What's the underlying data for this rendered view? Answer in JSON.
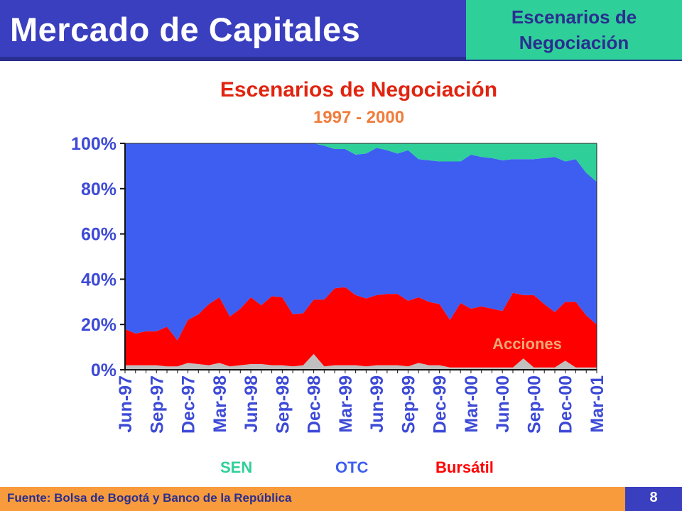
{
  "header": {
    "title": "Mercado de Capitales",
    "badge_line1": "Escenarios de",
    "badge_line2": "Negociación"
  },
  "footer": {
    "source": "Fuente: Bolsa de Bogotá y Banco de la República",
    "page_number": "8"
  },
  "colors": {
    "header": "#3a3fbf",
    "badge": "#2fcf9a",
    "footer": "#f89b3c",
    "title_red": "#e02410",
    "subtitle_orange": "#f07c3c",
    "axis_text": "#3d4ad6",
    "acciones": "#c0c0c0",
    "bursatil": "#ff0000",
    "otc": "#3d5ef0",
    "sen": "#2fcf9a"
  },
  "legend": {
    "sen": "SEN",
    "otc": "OTC",
    "bursatil": "Bursátil"
  },
  "chart_data": {
    "type": "area",
    "stacked": true,
    "percent": true,
    "title": "Escenarios de Negociación",
    "subtitle": "1997 - 2000",
    "ylim": [
      0,
      100
    ],
    "yticks": [
      0,
      20,
      40,
      60,
      80,
      100
    ],
    "ytick_labels": [
      "0%",
      "20%",
      "40%",
      "60%",
      "80%",
      "100%"
    ],
    "tick_labels": [
      "Jun-97",
      "Sep-97",
      "Dec-97",
      "Mar-98",
      "Jun-98",
      "Sep-98",
      "Dec-98",
      "Mar-99",
      "Jun-99",
      "Sep-99",
      "Dec-99",
      "Mar-00",
      "Jun-00",
      "Sep-00",
      "Dec-00",
      "Mar-01"
    ],
    "annotation": "Acciones",
    "x": [
      "Jun-97",
      "Jul-97",
      "Aug-97",
      "Sep-97",
      "Oct-97",
      "Nov-97",
      "Dec-97",
      "Jan-98",
      "Feb-98",
      "Mar-98",
      "Apr-98",
      "May-98",
      "Jun-98",
      "Jul-98",
      "Aug-98",
      "Sep-98",
      "Oct-98",
      "Nov-98",
      "Dec-98",
      "Jan-99",
      "Feb-99",
      "Mar-99",
      "Apr-99",
      "May-99",
      "Jun-99",
      "Jul-99",
      "Aug-99",
      "Sep-99",
      "Oct-99",
      "Nov-99",
      "Dec-99",
      "Jan-00",
      "Feb-00",
      "Mar-00",
      "Apr-00",
      "May-00",
      "Jun-00",
      "Jul-00",
      "Aug-00",
      "Sep-00",
      "Oct-00",
      "Nov-00",
      "Dec-00",
      "Jan-01",
      "Feb-01",
      "Mar-01"
    ],
    "series": [
      {
        "name": "Acciones",
        "values": [
          2,
          2,
          2,
          2,
          1.5,
          1.5,
          3,
          2.5,
          2,
          3,
          1.5,
          2,
          2.5,
          2.5,
          2,
          2,
          1.5,
          2,
          7,
          1.5,
          2,
          2,
          2,
          1.5,
          2,
          2,
          2,
          1.5,
          3,
          2,
          2,
          1,
          1,
          1,
          1,
          1,
          1,
          1,
          5,
          1,
          1,
          1,
          4,
          1,
          1,
          1
        ]
      },
      {
        "name": "Bursátil",
        "values": [
          16,
          14,
          15,
          15,
          17.5,
          11.5,
          19,
          22,
          27,
          29,
          22,
          25,
          29.5,
          26,
          30.5,
          30,
          23,
          23,
          24,
          29.5,
          34,
          34.5,
          31,
          30,
          31,
          31.5,
          31.5,
          29,
          29,
          28,
          27,
          21,
          28.5,
          26,
          27,
          26,
          25,
          33,
          28,
          32,
          28,
          24.5,
          26,
          29,
          23,
          19
        ]
      },
      {
        "name": "OTC",
        "values": [
          82,
          84,
          83,
          83,
          81,
          87,
          78,
          75.5,
          71,
          68,
          76.5,
          73,
          68,
          71.5,
          67.5,
          68,
          75.5,
          75,
          69,
          68,
          61.5,
          61,
          62,
          64,
          65,
          63.5,
          62,
          66.5,
          61,
          62.5,
          63,
          70,
          62.5,
          68,
          66,
          66.5,
          66.5,
          59,
          60,
          60,
          64.5,
          68.5,
          62,
          63,
          63,
          63
        ]
      },
      {
        "name": "SEN",
        "values": [
          0,
          0,
          0,
          0,
          0,
          0,
          0,
          0,
          0,
          0,
          0,
          0,
          0,
          0,
          0,
          0,
          0,
          0,
          0,
          1,
          2.5,
          2.5,
          5,
          4.5,
          2,
          3,
          4.5,
          3,
          7,
          7.5,
          8,
          8,
          8,
          5,
          6,
          6.5,
          7.5,
          7,
          7,
          7,
          6.5,
          6,
          8,
          7,
          13,
          17
        ]
      }
    ]
  }
}
